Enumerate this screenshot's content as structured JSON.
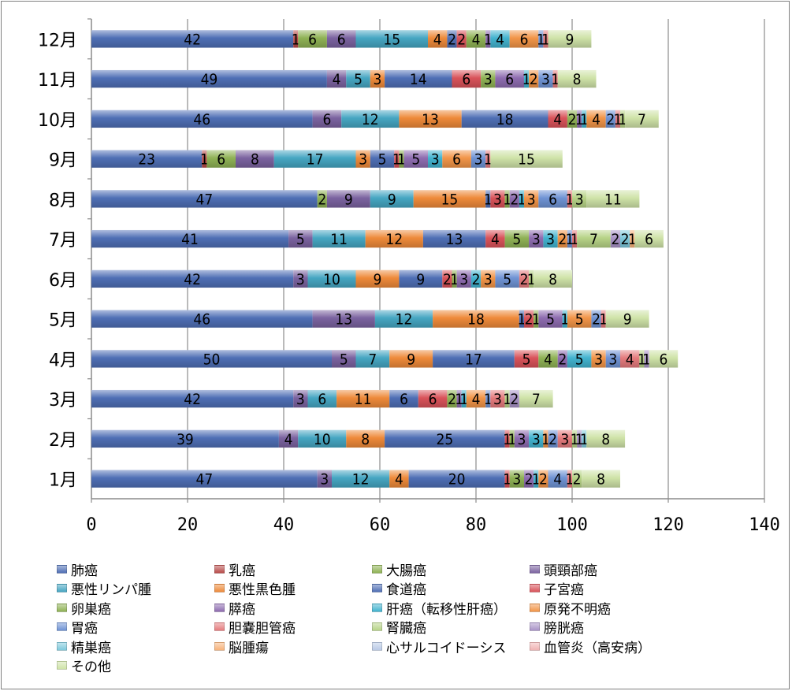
{
  "chart_data": {
    "type": "bar",
    "orientation": "horizontal",
    "stacked": true,
    "categories": [
      "12月",
      "11月",
      "10月",
      "9月",
      "8月",
      "7月",
      "6月",
      "5月",
      "4月",
      "3月",
      "2月",
      "1月"
    ],
    "xlim": [
      0,
      140
    ],
    "xticks": [
      0,
      20,
      40,
      60,
      80,
      100,
      120,
      140
    ],
    "grid": true,
    "legend_position": "bottom",
    "series": [
      {
        "name": "肺癌",
        "color": "#4f6fb5",
        "values": [
          42,
          49,
          46,
          23,
          47,
          41,
          42,
          46,
          50,
          42,
          39,
          47
        ]
      },
      {
        "name": "乳癌",
        "color": "#b84c4a",
        "values": [
          1,
          0,
          0,
          1,
          0,
          0,
          0,
          0,
          0,
          0,
          0,
          0
        ]
      },
      {
        "name": "大腸癌",
        "color": "#8fb255",
        "values": [
          6,
          0,
          0,
          6,
          2,
          0,
          0,
          0,
          0,
          0,
          0,
          0
        ]
      },
      {
        "name": "頭頸部癌",
        "color": "#7b63a0",
        "values": [
          6,
          4,
          6,
          8,
          9,
          5,
          3,
          13,
          5,
          3,
          4,
          3
        ]
      },
      {
        "name": "悪性リンパ腫",
        "color": "#46a6c2",
        "values": [
          15,
          5,
          12,
          17,
          9,
          11,
          10,
          12,
          7,
          6,
          10,
          12
        ]
      },
      {
        "name": "悪性黒色腫",
        "color": "#ee8a3a",
        "values": [
          4,
          3,
          13,
          3,
          15,
          12,
          9,
          18,
          9,
          11,
          8,
          4
        ]
      },
      {
        "name": "食道癌",
        "color": "#4f6fb5",
        "values": [
          2,
          14,
          18,
          5,
          1,
          13,
          9,
          1,
          17,
          6,
          25,
          20
        ]
      },
      {
        "name": "子宮癌",
        "color": "#d9535a",
        "values": [
          2,
          6,
          4,
          1,
          3,
          4,
          2,
          2,
          5,
          6,
          1,
          1
        ]
      },
      {
        "name": "卵巣癌",
        "color": "#8fb255",
        "values": [
          4,
          3,
          2,
          1,
          1,
          5,
          1,
          1,
          4,
          2,
          1,
          3
        ]
      },
      {
        "name": "膵癌",
        "color": "#8e6cb0",
        "values": [
          1,
          6,
          1,
          5,
          2,
          3,
          3,
          5,
          2,
          1,
          3,
          2
        ]
      },
      {
        "name": "肝癌（転移性肝癌）",
        "color": "#42b3cf",
        "values": [
          4,
          1,
          1,
          3,
          1,
          3,
          2,
          1,
          5,
          1,
          3,
          1
        ]
      },
      {
        "name": "原発不明癌",
        "color": "#f29548",
        "values": [
          6,
          2,
          4,
          6,
          3,
          2,
          3,
          5,
          3,
          4,
          1,
          2
        ]
      },
      {
        "name": "胃癌",
        "color": "#6f93d4",
        "values": [
          1,
          3,
          2,
          3,
          6,
          1,
          5,
          2,
          3,
          1,
          2,
          4
        ]
      },
      {
        "name": "胆嚢胆管癌",
        "color": "#e57b7d",
        "values": [
          1,
          1,
          1,
          1,
          1,
          1,
          2,
          1,
          4,
          3,
          3,
          1
        ]
      },
      {
        "name": "腎臓癌",
        "color": "#b7d387",
        "values": [
          0,
          0,
          1,
          0,
          3,
          7,
          1,
          0,
          1,
          1,
          1,
          2
        ]
      },
      {
        "name": "膀胱癌",
        "color": "#a993c7",
        "values": [
          0,
          0,
          0,
          0,
          0,
          2,
          0,
          0,
          1,
          2,
          1,
          0
        ]
      },
      {
        "name": "精巣癌",
        "color": "#7fc9dc",
        "values": [
          0,
          0,
          0,
          0,
          0,
          2,
          0,
          0,
          0,
          0,
          1,
          0
        ]
      },
      {
        "name": "脳腫瘍",
        "color": "#f7b27a",
        "values": [
          0,
          0,
          0,
          0,
          0,
          1,
          0,
          0,
          0,
          0,
          0,
          0
        ]
      },
      {
        "name": "心サルコイドーシス",
        "color": "#b9c9e6",
        "values": [
          0,
          0,
          0,
          0,
          0,
          0,
          0,
          0,
          0,
          0,
          0,
          0
        ]
      },
      {
        "name": "血管炎（高安病）",
        "color": "#f0b3b3",
        "values": [
          0,
          0,
          0,
          0,
          0,
          0,
          0,
          0,
          0,
          0,
          0,
          0
        ]
      },
      {
        "name": "その他",
        "color": "#cfe3a8",
        "values": [
          9,
          8,
          7,
          15,
          11,
          6,
          8,
          9,
          6,
          7,
          8,
          8
        ]
      }
    ]
  }
}
